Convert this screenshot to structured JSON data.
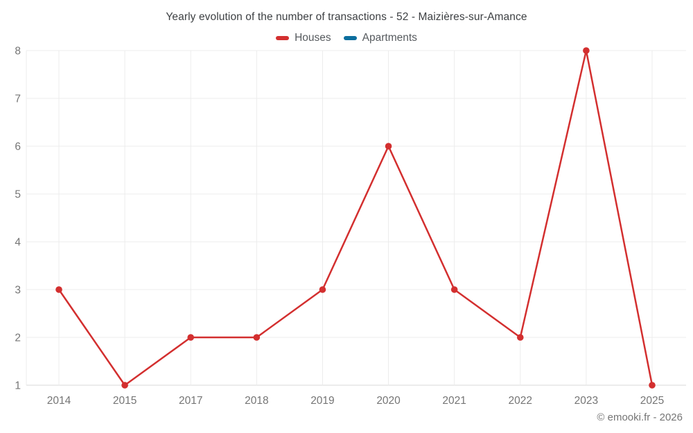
{
  "chart": {
    "title": "Yearly evolution of the number of transactions - 52 - Maizières-sur-Amance",
    "footer": "© emooki.fr - 2026",
    "legend": [
      {
        "id": "houses",
        "label": "Houses",
        "color": "#d32f2f"
      },
      {
        "id": "apartments",
        "label": "Apartments",
        "color": "#0c6e9e"
      }
    ],
    "colors": {
      "grid": "#ececec",
      "axis_line": "#d8d8d8",
      "tick_label": "#757575"
    }
  },
  "chart_data": {
    "type": "line",
    "title": "Yearly evolution of the number of transactions - 52 - Maizières-sur-Amance",
    "categories": [
      "2014",
      "2015",
      "2017",
      "2018",
      "2019",
      "2020",
      "2021",
      "2022",
      "2023",
      "2025"
    ],
    "series": [
      {
        "name": "Houses",
        "color": "#d32f2f",
        "values": [
          3,
          1,
          2,
          2,
          3,
          6,
          3,
          2,
          8,
          1
        ]
      },
      {
        "name": "Apartments",
        "color": "#0c6e9e",
        "values": []
      }
    ],
    "xlabel": "",
    "ylabel": "",
    "ylim": [
      1,
      8
    ],
    "yticks": [
      1,
      2,
      3,
      4,
      5,
      6,
      7,
      8
    ],
    "grid": true,
    "legend_position": "top"
  }
}
